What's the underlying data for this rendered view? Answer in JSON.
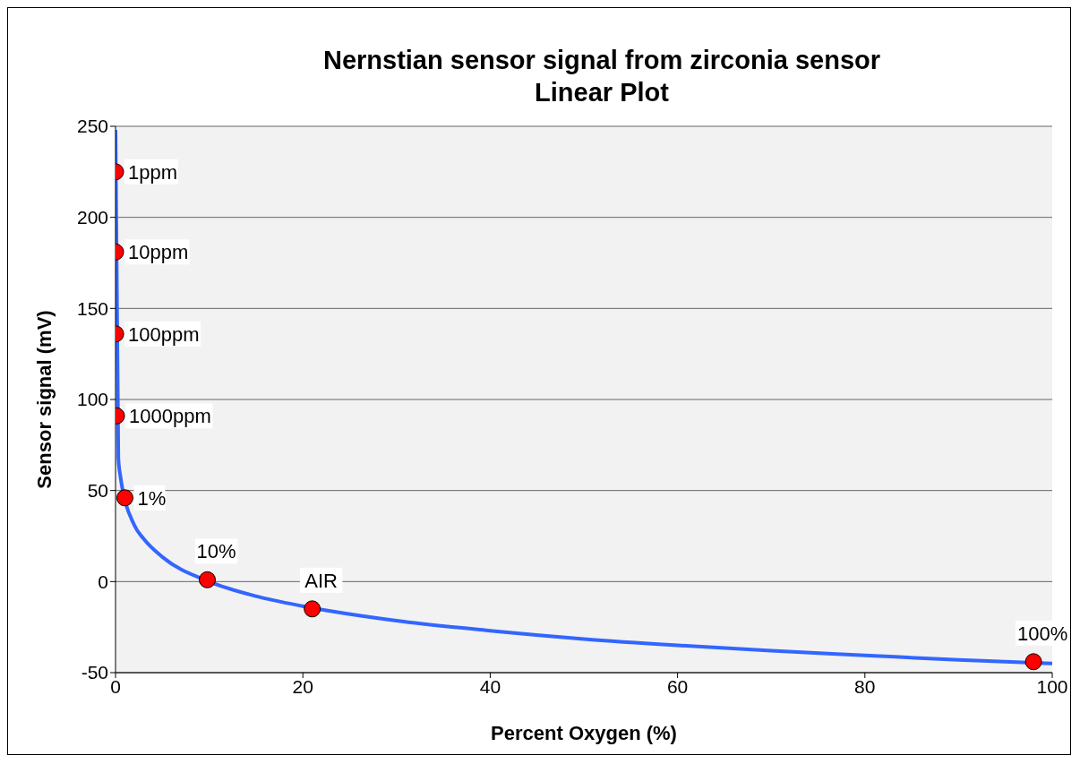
{
  "chart_data": {
    "type": "line",
    "title": "Nernstian sensor signal from zirconia sensor",
    "subtitle": "Linear Plot",
    "xlabel": "Percent Oxygen (%)",
    "ylabel": "Sensor signal (mV)",
    "xlim": [
      0,
      100
    ],
    "xticks": [
      0,
      20,
      40,
      60,
      80,
      100
    ],
    "ylim": [
      -50,
      250
    ],
    "yticks": [
      -50,
      0,
      50,
      100,
      150,
      200,
      250
    ],
    "grid": "y",
    "legend": false,
    "series": [
      {
        "color": "#3366ff",
        "marker": "none",
        "line_style": "solid",
        "x": [
          3e-05,
          0.3,
          0.5,
          2,
          3,
          5,
          10,
          15,
          20,
          30,
          40,
          50,
          60,
          70,
          80,
          90,
          100
        ],
        "values": [
          248,
          68,
          58.5,
          31,
          23.5,
          13.5,
          0,
          -8,
          -13.5,
          -21.5,
          -27,
          -31.5,
          -35,
          -38,
          -40.5,
          -43,
          -45
        ]
      },
      {
        "type": "scatter",
        "color": "#ff0000",
        "marker": "circle",
        "x": [
          0.0001,
          0.001,
          0.01,
          0.1,
          1,
          9.8,
          21,
          98
        ],
        "values": [
          225,
          181,
          136,
          91,
          46,
          1,
          -15,
          -44
        ]
      }
    ],
    "annotations": [
      {
        "text": "1ppm",
        "x": 0.0001,
        "y": 225
      },
      {
        "text": "10ppm",
        "x": 0.001,
        "y": 181
      },
      {
        "text": "100ppm",
        "x": 0.01,
        "y": 136
      },
      {
        "text": "1000ppm",
        "x": 0.1,
        "y": 91
      },
      {
        "text": "1%",
        "x": 1,
        "y": 46
      },
      {
        "text": "10%",
        "x": 9.8,
        "y": 1
      },
      {
        "text": "AIR",
        "x": 21,
        "y": -15
      },
      {
        "text": "100%",
        "x": 98,
        "y": -44
      }
    ]
  }
}
